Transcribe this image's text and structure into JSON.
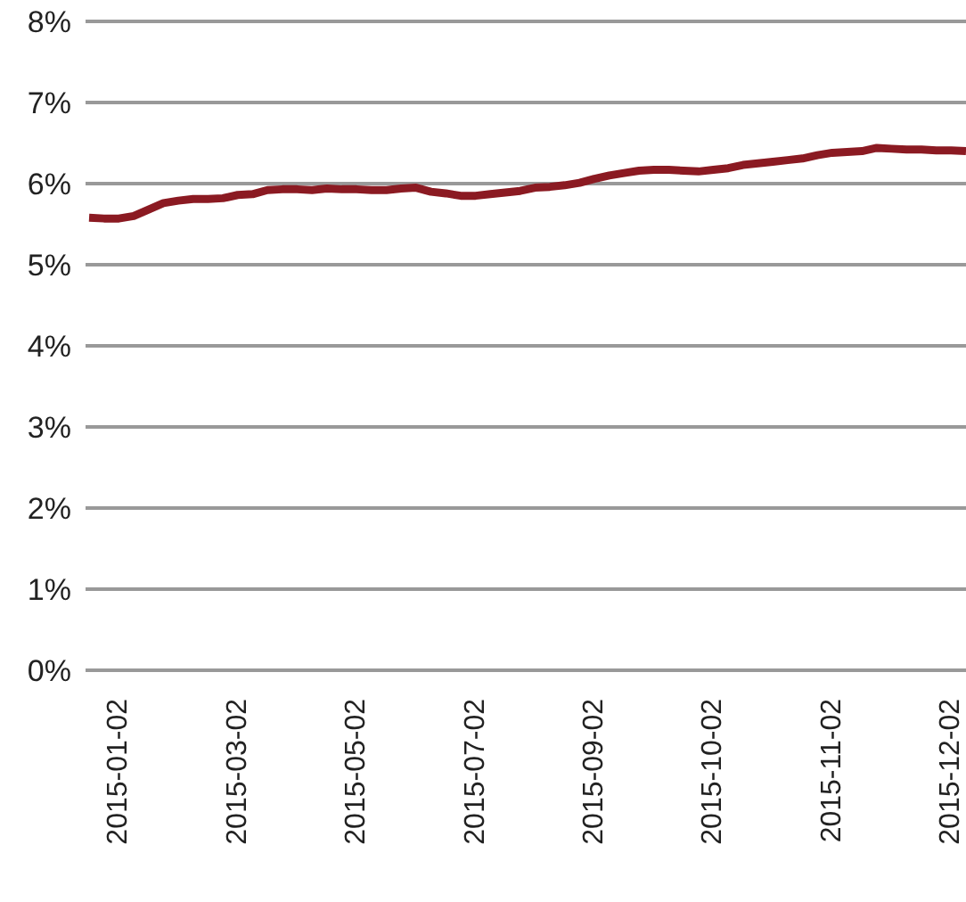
{
  "chart_data": {
    "type": "line",
    "categories": [
      null,
      null,
      "2015-01-02",
      null,
      null,
      null,
      null,
      null,
      null,
      null,
      "2015-03-02",
      null,
      null,
      null,
      null,
      null,
      null,
      null,
      "2015-05-02",
      null,
      null,
      null,
      null,
      null,
      null,
      null,
      "2015-07-02",
      null,
      null,
      null,
      null,
      null,
      null,
      null,
      "2015-09-02",
      null,
      null,
      null,
      null,
      null,
      null,
      null,
      "2015-10-02",
      null,
      null,
      null,
      null,
      null,
      null,
      null,
      "2015-11-02",
      null,
      null,
      null,
      null,
      null,
      null,
      null,
      "2015-12-02",
      null
    ],
    "series": [
      {
        "color": "#8b1a22",
        "values": [
          5.58,
          5.57,
          5.57,
          5.6,
          5.68,
          5.76,
          5.79,
          5.81,
          5.81,
          5.82,
          5.86,
          5.87,
          5.92,
          5.93,
          5.93,
          5.92,
          5.94,
          5.93,
          5.93,
          5.92,
          5.92,
          5.94,
          5.95,
          5.9,
          5.88,
          5.85,
          5.85,
          5.87,
          5.89,
          5.91,
          5.95,
          5.96,
          5.98,
          6.01,
          6.06,
          6.1,
          6.13,
          6.16,
          6.17,
          6.17,
          6.16,
          6.15,
          6.17,
          6.19,
          6.23,
          6.25,
          6.27,
          6.29,
          6.31,
          6.35,
          6.38,
          6.39,
          6.4,
          6.44,
          6.43,
          6.42,
          6.42,
          6.41,
          6.41,
          6.4
        ]
      }
    ],
    "ylim": [
      0,
      8
    ],
    "yticks": [
      {
        "value": 0,
        "label": "0%"
      },
      {
        "value": 1,
        "label": "1%"
      },
      {
        "value": 2,
        "label": "2%"
      },
      {
        "value": 3,
        "label": "3%"
      },
      {
        "value": 4,
        "label": "4%"
      },
      {
        "value": 5,
        "label": "5%"
      },
      {
        "value": 6,
        "label": "6%"
      },
      {
        "value": 7,
        "label": "7%"
      },
      {
        "value": 8,
        "label": "8%"
      }
    ],
    "grid": "y",
    "legend": false,
    "marker": "none",
    "line_style": "solid"
  }
}
